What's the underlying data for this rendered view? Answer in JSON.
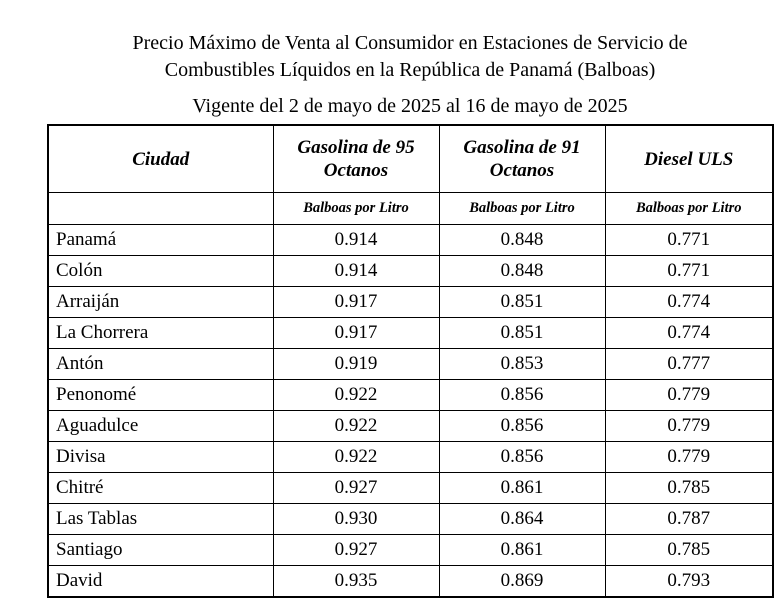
{
  "header": {
    "title_line1": "Precio Máximo de Venta al Consumidor en Estaciones de Servicio de",
    "title_line2": "Combustibles Líquidos en la República de Panamá (Balboas)",
    "validity": "Vigente del 2 de mayo de 2025 al 16 de mayo de 2025"
  },
  "table": {
    "columns": [
      "Ciudad",
      "Gasolina de 95 Octanos",
      "Gasolina de 91 Octanos",
      "Diesel ULS"
    ],
    "units": [
      "Balboas por Litro",
      "Balboas por Litro",
      "Balboas por Litro"
    ],
    "rows": [
      [
        "Panamá",
        "0.914",
        "0.848",
        "0.771"
      ],
      [
        "Colón",
        "0.914",
        "0.848",
        "0.771"
      ],
      [
        "Arraiján",
        "0.917",
        "0.851",
        "0.774"
      ],
      [
        "La Chorrera",
        "0.917",
        "0.851",
        "0.774"
      ],
      [
        "Antón",
        "0.919",
        "0.853",
        "0.777"
      ],
      [
        "Penonomé",
        "0.922",
        "0.856",
        "0.779"
      ],
      [
        "Aguadulce",
        "0.922",
        "0.856",
        "0.779"
      ],
      [
        "Divisa",
        "0.922",
        "0.856",
        "0.779"
      ],
      [
        "Chitré",
        "0.927",
        "0.861",
        "0.785"
      ],
      [
        "Las Tablas",
        "0.930",
        "0.864",
        "0.787"
      ],
      [
        "Santiago",
        "0.927",
        "0.861",
        "0.785"
      ],
      [
        "David",
        "0.935",
        "0.869",
        "0.793"
      ]
    ]
  }
}
